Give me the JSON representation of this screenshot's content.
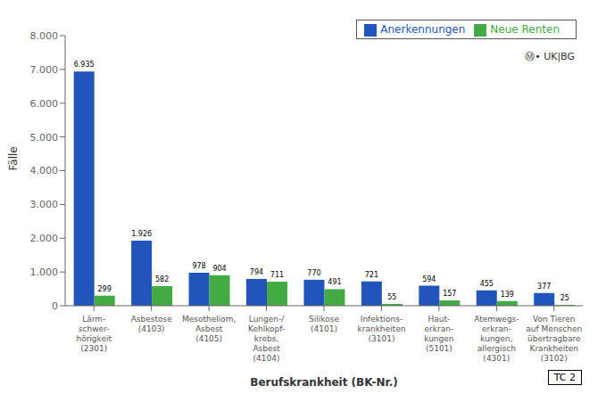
{
  "chart_data": {
    "type": "bar",
    "categories": [
      "Lärm-\nschwer-\nhörigkeit\n(2301)",
      "Asbestose\n(4103)",
      "Mesotheliom,\nAsbest\n(4105)",
      "Lungen-/\nKehlkopf-\nkrebs,\nAsbest\n(4104)",
      "Silikose\n(4101)",
      "Infektions-\nkrankheiten\n(3101)",
      "Haut-\nerkran-\nkungen\n(5101)",
      "Atemwegs-\nerkran-\nkungen,\nallergisch\n(4301)",
      "Von Tieren\nauf Menschen\nübertragbare\nKrankheiten\n(3102)"
    ],
    "series": [
      {
        "name": "Anerkennungen",
        "color": "#2255bb",
        "values": [
          6935,
          1926,
          978,
          794,
          770,
          721,
          594,
          455,
          377
        ],
        "value_labels": [
          "6.935",
          "1.926",
          "978",
          "794",
          "770",
          "721",
          "594",
          "455",
          "377"
        ]
      },
      {
        "name": "Neue Renten",
        "color": "#44aa44",
        "values": [
          299,
          582,
          904,
          711,
          491,
          55,
          157,
          139,
          25
        ],
        "value_labels": [
          "299",
          "582",
          "904",
          "711",
          "491",
          "55",
          "157",
          "139",
          "25"
        ]
      }
    ],
    "ylabel": "Fälle",
    "xlabel": "Berufskrankheit (BK-Nr.)",
    "ylim": [
      0,
      8000
    ],
    "yticks": [
      0,
      {
        "value": 1000,
        "label": "1.000"
      },
      {
        "value": 2000,
        "label": "2.000"
      },
      {
        "value": 3000,
        "label": "3.000"
      },
      {
        "value": 4000,
        "label": "4.000"
      },
      {
        "value": 5000,
        "label": "5.000"
      },
      {
        "value": 6000,
        "label": "6.000"
      },
      {
        "value": 7000,
        "label": "7.000"
      },
      {
        "value": 8000,
        "label": "8.000"
      }
    ],
    "grid": false,
    "legend": "upper right",
    "data_labels": true,
    "annotations": [
      "Ⓜ• UK|BG",
      "TC 2"
    ]
  }
}
